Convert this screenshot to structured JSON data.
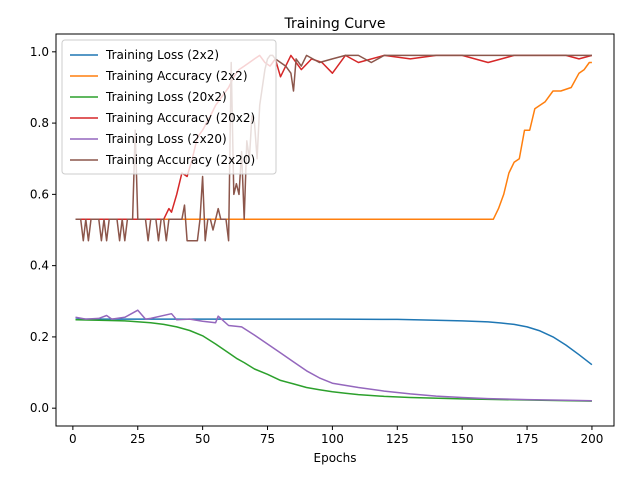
{
  "chart_data": {
    "type": "line",
    "title": "Training Curve",
    "xlabel": "Epochs",
    "ylabel": "",
    "xlim": [
      -6.5,
      208.5
    ],
    "ylim": [
      -0.05,
      1.05
    ],
    "xticks": [
      0,
      25,
      50,
      75,
      100,
      125,
      150,
      175,
      200
    ],
    "yticks": [
      0.0,
      0.2,
      0.4,
      0.6,
      0.8,
      1.0
    ],
    "xtick_labels": [
      "0",
      "25",
      "50",
      "75",
      "100",
      "125",
      "150",
      "175",
      "200"
    ],
    "ytick_labels": [
      "0.0",
      "0.2",
      "0.4",
      "0.6",
      "0.8",
      "1.0"
    ],
    "grid": false,
    "legend_position": "upper-left",
    "series": [
      {
        "name": "Training Loss (2x2)",
        "color": "#1f77b4",
        "x": [
          1,
          25,
          50,
          75,
          100,
          125,
          140,
          150,
          160,
          165,
          170,
          175,
          180,
          185,
          190,
          195,
          200
        ],
        "y": [
          0.25,
          0.25,
          0.25,
          0.25,
          0.25,
          0.249,
          0.247,
          0.245,
          0.242,
          0.239,
          0.235,
          0.228,
          0.217,
          0.2,
          0.177,
          0.15,
          0.122
        ]
      },
      {
        "name": "Training Accuracy (2x2)",
        "color": "#ff7f0e",
        "x": [
          1,
          162,
          164,
          166,
          168,
          170,
          172,
          174,
          176,
          178,
          180,
          182,
          185,
          188,
          192,
          195,
          197,
          199,
          200
        ],
        "y": [
          0.53,
          0.53,
          0.56,
          0.6,
          0.66,
          0.69,
          0.7,
          0.78,
          0.78,
          0.84,
          0.85,
          0.86,
          0.89,
          0.89,
          0.9,
          0.94,
          0.95,
          0.97,
          0.97
        ]
      },
      {
        "name": "Training Loss (20x2)",
        "color": "#2ca02c",
        "x": [
          1,
          10,
          20,
          30,
          35,
          40,
          45,
          50,
          55,
          60,
          63,
          66,
          70,
          75,
          80,
          85,
          90,
          95,
          100,
          105,
          110,
          120,
          130,
          150,
          175,
          200
        ],
        "y": [
          0.248,
          0.247,
          0.245,
          0.24,
          0.235,
          0.228,
          0.218,
          0.203,
          0.18,
          0.155,
          0.14,
          0.128,
          0.11,
          0.095,
          0.078,
          0.068,
          0.058,
          0.052,
          0.046,
          0.042,
          0.038,
          0.033,
          0.03,
          0.026,
          0.023,
          0.02
        ]
      },
      {
        "name": "Training Accuracy (20x2)",
        "color": "#d62728",
        "x": [
          1,
          35,
          37,
          38,
          40,
          42,
          44,
          46,
          48,
          50,
          53,
          55,
          58,
          60,
          62,
          64,
          66,
          68,
          70,
          72,
          74,
          76,
          78,
          80,
          84,
          88,
          92,
          96,
          100,
          105,
          110,
          120,
          130,
          140,
          150,
          160,
          170,
          180,
          190,
          195,
          200
        ],
        "y": [
          0.53,
          0.53,
          0.56,
          0.55,
          0.6,
          0.66,
          0.65,
          0.7,
          0.76,
          0.78,
          0.82,
          0.85,
          0.88,
          0.9,
          0.93,
          0.95,
          0.96,
          0.97,
          0.98,
          0.99,
          0.97,
          0.96,
          0.98,
          0.93,
          0.99,
          0.95,
          0.98,
          0.97,
          0.94,
          0.99,
          0.97,
          0.99,
          0.98,
          0.99,
          0.99,
          0.97,
          0.99,
          0.99,
          0.99,
          0.98,
          0.99
        ]
      },
      {
        "name": "Training Loss (2x20)",
        "color": "#9467bd",
        "x": [
          1,
          5,
          10,
          13,
          15,
          20,
          25,
          28,
          30,
          38,
          40,
          45,
          50,
          55,
          56,
          60,
          65,
          70,
          75,
          80,
          85,
          90,
          95,
          100,
          110,
          120,
          130,
          140,
          150,
          160,
          175,
          190,
          200
        ],
        "y": [
          0.255,
          0.25,
          0.252,
          0.26,
          0.25,
          0.255,
          0.275,
          0.25,
          0.252,
          0.265,
          0.248,
          0.25,
          0.244,
          0.24,
          0.258,
          0.232,
          0.228,
          0.205,
          0.18,
          0.155,
          0.13,
          0.105,
          0.085,
          0.07,
          0.058,
          0.048,
          0.04,
          0.034,
          0.03,
          0.027,
          0.024,
          0.022,
          0.021
        ]
      },
      {
        "name": "Training Accuracy (2x20)",
        "color": "#8c564b",
        "x": [
          1,
          3,
          4,
          5,
          6,
          7,
          9,
          10,
          11,
          12,
          13,
          14,
          15,
          17,
          18,
          19,
          20,
          21,
          22,
          23,
          24,
          25,
          26,
          28,
          29,
          30,
          31,
          32,
          33,
          34,
          35,
          36,
          37,
          38,
          39,
          40,
          41,
          42,
          43,
          44,
          45,
          46,
          47,
          48,
          49,
          50,
          51,
          52,
          53,
          54,
          55,
          56,
          57,
          58,
          59,
          60,
          61,
          62,
          63,
          64,
          65,
          66,
          67,
          68,
          69,
          70,
          71,
          72,
          73,
          74,
          75,
          76,
          77,
          78,
          80,
          82,
          84,
          85,
          86,
          88,
          90,
          95,
          100,
          105,
          110,
          115,
          120,
          125,
          130,
          140,
          150,
          160,
          170,
          180,
          190,
          200
        ],
        "y": [
          0.53,
          0.53,
          0.47,
          0.53,
          0.47,
          0.53,
          0.53,
          0.53,
          0.47,
          0.53,
          0.47,
          0.53,
          0.53,
          0.53,
          0.47,
          0.53,
          0.47,
          0.53,
          0.53,
          0.53,
          0.78,
          0.53,
          0.53,
          0.53,
          0.47,
          0.53,
          0.53,
          0.53,
          0.47,
          0.53,
          0.53,
          0.47,
          0.53,
          0.53,
          0.53,
          0.53,
          0.53,
          0.53,
          0.57,
          0.47,
          0.47,
          0.47,
          0.47,
          0.47,
          0.53,
          0.65,
          0.47,
          0.53,
          0.53,
          0.5,
          0.53,
          0.56,
          0.53,
          0.53,
          0.53,
          0.47,
          0.97,
          0.6,
          0.63,
          0.6,
          0.72,
          0.53,
          0.75,
          0.7,
          0.82,
          0.8,
          0.7,
          0.85,
          0.9,
          0.95,
          0.98,
          0.99,
          0.99,
          0.98,
          0.97,
          0.96,
          0.94,
          0.89,
          0.98,
          0.96,
          0.99,
          0.97,
          0.98,
          0.99,
          0.99,
          0.97,
          0.99,
          0.99,
          0.99,
          0.99,
          0.99,
          0.99,
          0.99,
          0.99,
          0.99,
          0.99
        ]
      }
    ]
  }
}
